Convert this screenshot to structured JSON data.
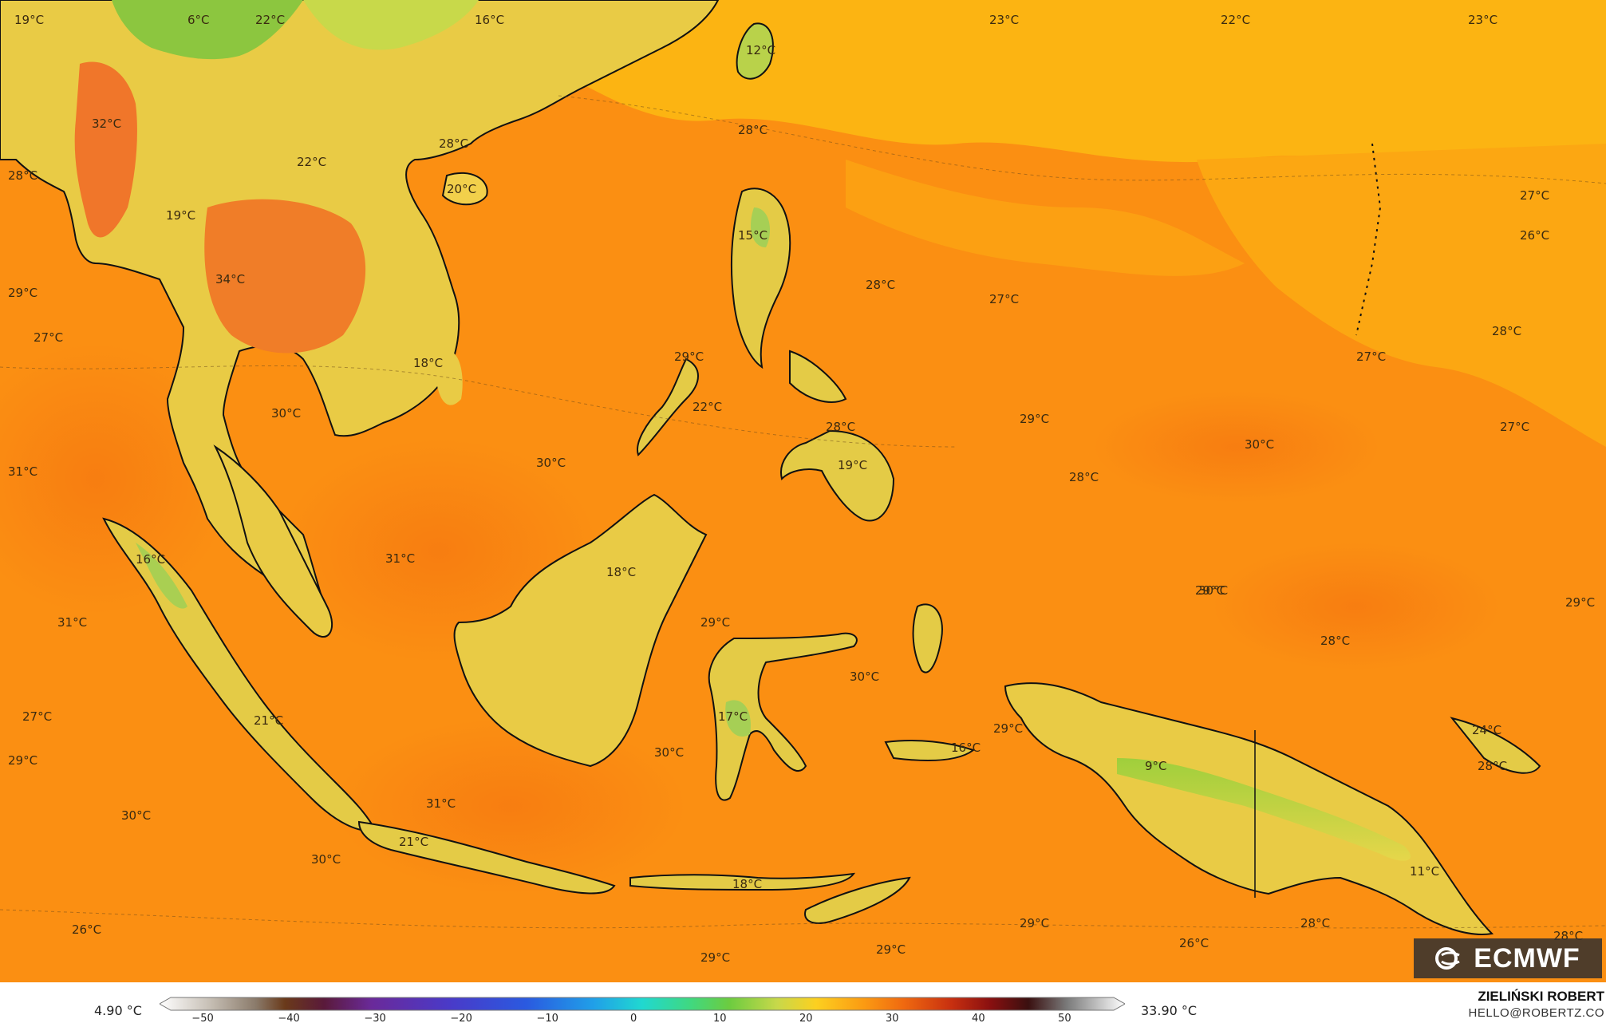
{
  "map": {
    "labels": [
      {
        "text": "19°C"
      },
      {
        "text": "6°C"
      },
      {
        "text": "22°C"
      },
      {
        "text": "16°C"
      },
      {
        "text": "23°C"
      },
      {
        "text": "22°C"
      },
      {
        "text": "23°C"
      },
      {
        "text": "12°C"
      },
      {
        "text": "32°C"
      },
      {
        "text": "28°C"
      },
      {
        "text": "28°C"
      },
      {
        "text": "20°C"
      },
      {
        "text": "22°C"
      },
      {
        "text": "28°C"
      },
      {
        "text": "19°C"
      },
      {
        "text": "15°C"
      },
      {
        "text": "27°C"
      },
      {
        "text": "26°C"
      },
      {
        "text": "29°C"
      },
      {
        "text": "34°C"
      },
      {
        "text": "28°C"
      },
      {
        "text": "27°C"
      },
      {
        "text": "27°C"
      },
      {
        "text": "28°C"
      },
      {
        "text": "18°C"
      },
      {
        "text": "29°C"
      },
      {
        "text": "27°C"
      },
      {
        "text": "30°C"
      },
      {
        "text": "22°C"
      },
      {
        "text": "28°C"
      },
      {
        "text": "29°C"
      },
      {
        "text": "27°C"
      },
      {
        "text": "31°C"
      },
      {
        "text": "30°C"
      },
      {
        "text": "19°C"
      },
      {
        "text": "30°C"
      },
      {
        "text": "28°C"
      },
      {
        "text": "16°C"
      },
      {
        "text": "31°C"
      },
      {
        "text": "18°C"
      },
      {
        "text": "29°C"
      },
      {
        "text": "30°C"
      },
      {
        "text": "31°C"
      },
      {
        "text": "29°C"
      },
      {
        "text": "28°C"
      },
      {
        "text": "29°C"
      },
      {
        "text": "30°C"
      },
      {
        "text": "27°C"
      },
      {
        "text": "21°C"
      },
      {
        "text": "17°C"
      },
      {
        "text": "29°C"
      },
      {
        "text": "24°C"
      },
      {
        "text": "29°C"
      },
      {
        "text": "30°C"
      },
      {
        "text": "16°C"
      },
      {
        "text": "9°C"
      },
      {
        "text": "28°C"
      },
      {
        "text": "30°C"
      },
      {
        "text": "31°C"
      },
      {
        "text": "21°C"
      },
      {
        "text": "18°C"
      },
      {
        "text": "30°C"
      },
      {
        "text": "11°C"
      },
      {
        "text": "26°C"
      },
      {
        "text": "29°C"
      },
      {
        "text": "29°C"
      },
      {
        "text": "29°C"
      },
      {
        "text": "26°C"
      },
      {
        "text": "28°C"
      },
      {
        "text": "28°C"
      }
    ]
  },
  "legend": {
    "min_label": "4.90 °C",
    "max_label": "33.90 °C",
    "ticks": [
      "−50",
      "−40",
      "−30",
      "−20",
      "−10",
      "0",
      "10",
      "20",
      "30",
      "40",
      "50"
    ],
    "range": [
      -55,
      57
    ]
  },
  "credit": {
    "name": "ZIELIŃSKI ROBERT",
    "email": "HELLO@ROBERTZ.CO"
  },
  "logo": {
    "text": "ECMWF"
  }
}
